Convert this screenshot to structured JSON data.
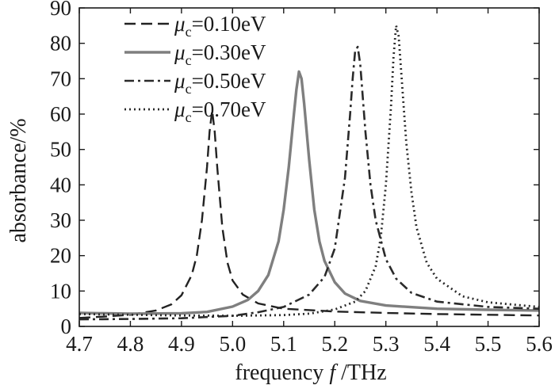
{
  "chart_data": {
    "type": "line",
    "xlabel": {
      "prefix": "frequency ",
      "var": "f",
      "suffix": " /THz"
    },
    "ylabel": "absorbance/%",
    "xlim": [
      4.7,
      5.6
    ],
    "ylim": [
      0,
      90
    ],
    "xticks": [
      "4.7",
      "4.8",
      "4.9",
      "5.0",
      "5.1",
      "5.2",
      "5.3",
      "5.4",
      "5.5",
      "5.6"
    ],
    "yticks": [
      "0",
      "10",
      "20",
      "30",
      "40",
      "50",
      "60",
      "70",
      "80",
      "90"
    ],
    "grid": false,
    "legend_position": "top-left",
    "series": [
      {
        "name": "μc=0.10eV",
        "symbol": "μ",
        "sub": "c",
        "value": "=0.10eV",
        "color": "#222222",
        "dash": "14,7",
        "width": 2.4,
        "x": [
          4.7,
          4.75,
          4.8,
          4.85,
          4.88,
          4.9,
          4.92,
          4.93,
          4.94,
          4.95,
          4.955,
          4.96,
          4.965,
          4.97,
          4.98,
          4.99,
          5.0,
          5.02,
          5.05,
          5.1,
          5.2,
          5.3,
          5.4,
          5.5,
          5.6
        ],
        "y": [
          2.4,
          2.8,
          3.3,
          4.5,
          6.2,
          8.8,
          14.5,
          20.0,
          30.0,
          45.0,
          55.0,
          61.0,
          55.0,
          45.0,
          28.0,
          18.0,
          13.0,
          9.0,
          6.5,
          5.0,
          4.2,
          3.8,
          3.5,
          3.3,
          3.1
        ]
      },
      {
        "name": "μc=0.30eV",
        "symbol": "μ",
        "sub": "c",
        "value": "=0.30eV",
        "color": "#7f7f7f",
        "dash": "",
        "width": 3.4,
        "x": [
          4.7,
          4.8,
          4.9,
          4.95,
          5.0,
          5.03,
          5.05,
          5.07,
          5.09,
          5.1,
          5.11,
          5.12,
          5.125,
          5.13,
          5.135,
          5.14,
          5.15,
          5.16,
          5.17,
          5.18,
          5.2,
          5.22,
          5.25,
          5.3,
          5.4,
          5.5,
          5.6
        ],
        "y": [
          3.8,
          3.6,
          3.7,
          4.1,
          5.6,
          7.5,
          10.0,
          14.5,
          24.0,
          33.0,
          45.0,
          60.0,
          67.0,
          72.0,
          70.0,
          63.0,
          47.0,
          33.0,
          24.0,
          18.5,
          12.5,
          9.3,
          7.2,
          5.9,
          5.0,
          4.7,
          4.5
        ]
      },
      {
        "name": "μc=0.50eV",
        "symbol": "μ",
        "sub": "c",
        "value": "=0.50eV",
        "color": "#2a2a2a",
        "dash": "12,5,3,5",
        "width": 2.6,
        "x": [
          4.7,
          4.8,
          4.9,
          5.0,
          5.05,
          5.1,
          5.15,
          5.18,
          5.2,
          5.22,
          5.23,
          5.235,
          5.24,
          5.245,
          5.25,
          5.26,
          5.27,
          5.28,
          5.3,
          5.32,
          5.35,
          5.4,
          5.5,
          5.6
        ],
        "y": [
          2.0,
          2.1,
          2.3,
          3.0,
          4.0,
          5.5,
          9.0,
          14.0,
          22.0,
          42.0,
          60.0,
          70.0,
          78.0,
          79.0,
          74.0,
          55.0,
          40.0,
          30.0,
          19.0,
          13.5,
          9.5,
          7.0,
          5.5,
          5.0
        ]
      },
      {
        "name": "μc=0.70eV",
        "symbol": "μ",
        "sub": "c",
        "value": "=0.70eV",
        "color": "#2a2a2a",
        "dash": "2,4",
        "width": 2.8,
        "x": [
          4.7,
          4.8,
          4.9,
          5.0,
          5.1,
          5.15,
          5.2,
          5.24,
          5.26,
          5.28,
          5.29,
          5.3,
          5.31,
          5.315,
          5.32,
          5.325,
          5.33,
          5.34,
          5.35,
          5.36,
          5.38,
          5.4,
          5.45,
          5.5,
          5.6
        ],
        "y": [
          3.5,
          3.3,
          3.1,
          3.0,
          3.2,
          3.6,
          4.8,
          7.0,
          10.0,
          17.0,
          25.0,
          40.0,
          62.0,
          76.0,
          85.0,
          82.0,
          72.0,
          52.0,
          38.0,
          28.0,
          18.0,
          13.5,
          8.5,
          6.8,
          5.5
        ]
      }
    ]
  }
}
